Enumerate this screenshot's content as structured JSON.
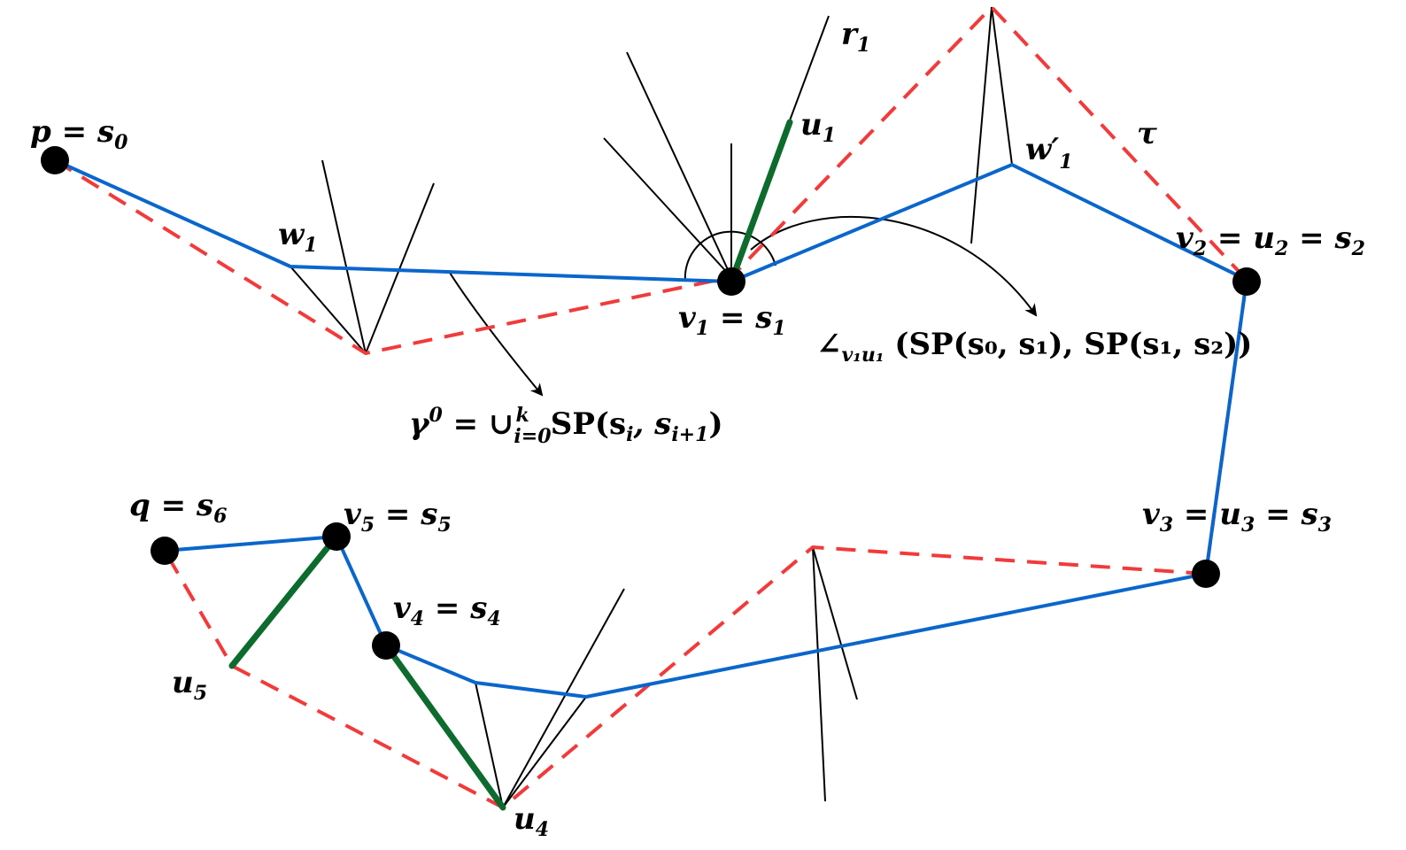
{
  "colors": {
    "path": "#0a66cc",
    "dashed": "#f23a3a",
    "segment": "#0d6b2e",
    "line": "#000000",
    "vertex": "#000000"
  },
  "labels": {
    "p": "p = s",
    "p_sub": "0",
    "w1": "w",
    "w1_sub": "1",
    "v1": "v",
    "v1_sub": "1",
    "v1_eq": " = s",
    "v1_eq_sub": "1",
    "u1": "u",
    "u1_sub": "1",
    "r1": "r",
    "r1_sub": "1",
    "w1p": "w′",
    "w1p_sub": "1",
    "tau": "τ",
    "v2": "v",
    "v2_sub": "2",
    "v2_mid": " = u",
    "v2_mid_sub": "2",
    "v2_end": " = s",
    "v2_end_sub": "2",
    "v3": "v",
    "v3_sub": "3",
    "v3_mid": " = u",
    "v3_mid_sub": "3",
    "v3_end": " = s",
    "v3_end_sub": "3",
    "q": "q = s",
    "q_sub": "6",
    "v5": "v",
    "v5_sub": "5",
    "v5_eq": " = s",
    "v5_eq_sub": "5",
    "v4": "v",
    "v4_sub": "4",
    "v4_eq": " = s",
    "v4_eq_sub": "4",
    "u5": "u",
    "u5_sub": "5",
    "u4": "u",
    "u4_sub": "4",
    "gamma": "γ",
    "gamma_sup": "0",
    "gamma_eq": " = ∪",
    "gamma_sub": "i=0",
    "gamma_sup_k": "k",
    "gamma_sp": "SP(s",
    "gamma_si": "i",
    "gamma_comma": ", s",
    "gamma_si1": "i+1",
    "gamma_close": ")",
    "angle_sym": "∠",
    "angle_sub": "v₁u₁",
    "angle_body": " (SP(s₀, s₁), SP(s₁, s₂))"
  }
}
